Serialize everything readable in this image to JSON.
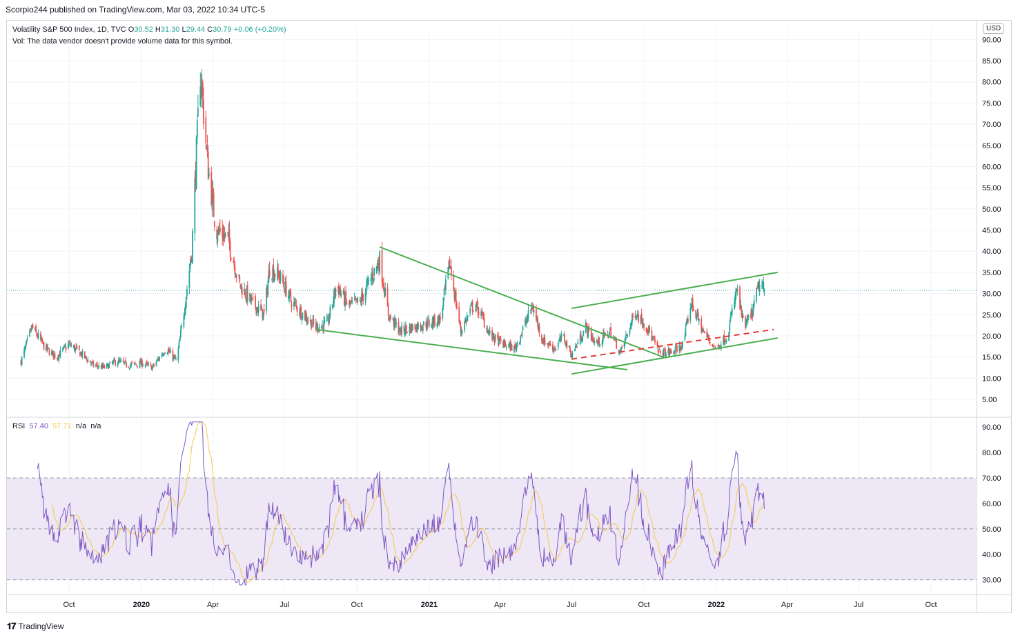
{
  "header": {
    "published": "Scorpio244 published on TradingView.com, Mar 03, 2022 10:34 UTC-5"
  },
  "legend": {
    "symbol": "Volatility S&P 500 Index, 1D, TVC",
    "open_label": "O",
    "open": "30.52",
    "high_label": "H",
    "high": "31.30",
    "low_label": "L",
    "low": "29.44",
    "close_label": "C",
    "close": "30.79",
    "change": "+0.06 (+0.20%)",
    "vol_note": "Vol: The data vendor doesn't provide volume data for this symbol."
  },
  "rsi_legend": {
    "name": "RSI",
    "rsi": "57.40",
    "ma": "57.71",
    "na1": "n/a",
    "na2": "n/a"
  },
  "currency_badge": "USD",
  "footer": {
    "brand": "TradingView"
  },
  "colors": {
    "up": "#26a69a",
    "down": "#ef5350",
    "rsi_line": "#7e57c2",
    "rsi_ma": "#f7c948",
    "rsi_band": "#ede7f6",
    "trend_green": "#4caf50",
    "trend_red": "#e53935"
  },
  "chart_data": [
    {
      "type": "candlestick",
      "title": "Volatility S&P 500 Index, 1D, TVC",
      "ylim": [
        5,
        90
      ],
      "y_ticks": [
        "90.00",
        "85.00",
        "80.00",
        "75.00",
        "70.00",
        "65.00",
        "60.00",
        "55.00",
        "50.00",
        "45.00",
        "40.00",
        "35.00",
        "30.00",
        "25.00",
        "20.00",
        "15.00",
        "10.00",
        "5.00"
      ],
      "x_ticks": [
        "Oct",
        "2020",
        "Apr",
        "Jul",
        "Oct",
        "2021",
        "Apr",
        "Jul",
        "Oct",
        "2022",
        "Apr",
        "Jul",
        "Oct"
      ],
      "last_price": 30.79,
      "series_approx_close": [
        [
          "2019-08-01",
          14
        ],
        [
          "2019-08-15",
          22
        ],
        [
          "2019-09-01",
          17
        ],
        [
          "2019-09-15",
          15
        ],
        [
          "2019-10-01",
          18
        ],
        [
          "2019-10-15",
          16
        ],
        [
          "2019-11-01",
          13
        ],
        [
          "2019-11-15",
          12.5
        ],
        [
          "2019-12-01",
          14
        ],
        [
          "2019-12-15",
          13
        ],
        [
          "2020-01-01",
          13.5
        ],
        [
          "2020-01-15",
          12.5
        ],
        [
          "2020-02-01",
          17
        ],
        [
          "2020-02-15",
          14
        ],
        [
          "2020-02-25",
          27
        ],
        [
          "2020-03-05",
          40
        ],
        [
          "2020-03-16",
          82.7
        ],
        [
          "2020-03-25",
          61
        ],
        [
          "2020-04-05",
          45
        ],
        [
          "2020-04-20",
          43
        ],
        [
          "2020-05-05",
          32
        ],
        [
          "2020-05-20",
          28
        ],
        [
          "2020-06-05",
          25
        ],
        [
          "2020-06-12",
          36
        ],
        [
          "2020-06-25",
          34
        ],
        [
          "2020-07-10",
          28
        ],
        [
          "2020-07-25",
          25
        ],
        [
          "2020-08-10",
          22
        ],
        [
          "2020-08-25",
          23
        ],
        [
          "2020-09-05",
          32
        ],
        [
          "2020-09-20",
          27
        ],
        [
          "2020-10-05",
          28
        ],
        [
          "2020-10-30",
          38
        ],
        [
          "2020-11-10",
          25
        ],
        [
          "2020-11-25",
          21
        ],
        [
          "2020-12-10",
          22
        ],
        [
          "2021-01-01",
          23
        ],
        [
          "2021-01-15",
          24
        ],
        [
          "2021-01-27",
          37
        ],
        [
          "2021-02-10",
          21
        ],
        [
          "2021-02-25",
          27
        ],
        [
          "2021-03-05",
          26
        ],
        [
          "2021-03-20",
          20
        ],
        [
          "2021-04-05",
          18
        ],
        [
          "2021-04-20",
          17
        ],
        [
          "2021-05-12",
          27
        ],
        [
          "2021-05-25",
          19
        ],
        [
          "2021-06-10",
          17
        ],
        [
          "2021-06-20",
          20
        ],
        [
          "2021-07-01",
          15.5
        ],
        [
          "2021-07-19",
          22
        ],
        [
          "2021-08-01",
          18
        ],
        [
          "2021-08-19",
          21
        ],
        [
          "2021-09-01",
          16
        ],
        [
          "2021-09-20",
          25.7
        ],
        [
          "2021-10-05",
          22
        ],
        [
          "2021-10-20",
          16
        ],
        [
          "2021-11-05",
          16
        ],
        [
          "2021-11-20",
          18
        ],
        [
          "2021-11-30",
          28
        ],
        [
          "2021-12-15",
          21
        ],
        [
          "2021-12-31",
          17
        ],
        [
          "2022-01-15",
          20
        ],
        [
          "2022-01-27",
          31
        ],
        [
          "2022-02-05",
          22
        ],
        [
          "2022-02-15",
          25
        ],
        [
          "2022-02-24",
          32
        ],
        [
          "2022-03-03",
          30.79
        ]
      ],
      "drawings": [
        {
          "name": "falling-wedge-upper",
          "color": "green",
          "from": [
            "2020-10-30",
            41
          ],
          "to": [
            "2021-10-25",
            15
          ]
        },
        {
          "name": "falling-wedge-lower",
          "color": "green",
          "from": [
            "2020-08-10",
            21.5
          ],
          "to": [
            "2021-09-10",
            12
          ]
        },
        {
          "name": "rising-channel-upper",
          "color": "green",
          "from": [
            "2021-07-01",
            26.5
          ],
          "to": [
            "2022-03-20",
            35
          ]
        },
        {
          "name": "rising-channel-lower",
          "color": "green",
          "from": [
            "2021-07-01",
            11
          ],
          "to": [
            "2022-03-20",
            19.5
          ]
        },
        {
          "name": "rising-support-dashed",
          "color": "red",
          "from": [
            "2021-07-01",
            14.5
          ],
          "to": [
            "2022-03-15",
            21.5
          ]
        }
      ]
    },
    {
      "type": "line",
      "title": "RSI",
      "ylim": [
        25,
        92
      ],
      "y_ticks": [
        "90.00",
        "80.00",
        "70.00",
        "60.00",
        "50.00",
        "40.00",
        "30.00"
      ],
      "levels": [
        70,
        50,
        30
      ],
      "series": [
        {
          "name": "RSI",
          "last": 57.4
        },
        {
          "name": "RSI MA",
          "last": 57.71
        }
      ]
    }
  ]
}
